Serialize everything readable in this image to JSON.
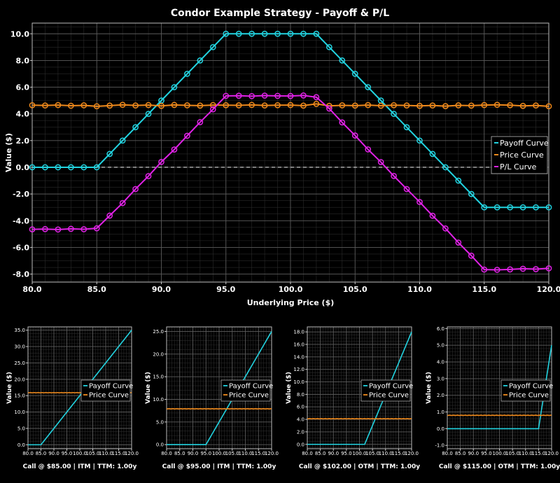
{
  "colors": {
    "payoff": "#22d3e0",
    "price": "#f08a1c",
    "pl": "#e022e6",
    "background": "#000000",
    "grid": "#3a3a3a"
  },
  "chart_data": [
    {
      "type": "line",
      "title": "Condor Example Strategy - Payoff & P/L",
      "xlabel": "Underlying Price ($)",
      "ylabel": "Value ($)",
      "xlim": [
        80,
        120
      ],
      "ylim": [
        -8.6,
        10.8
      ],
      "xticks": [
        80,
        85,
        90,
        95,
        100,
        105,
        110,
        115,
        120
      ],
      "xtick_labels": [
        "80.0",
        "85.0",
        "90.0",
        "95.0",
        "100.0",
        "105.0",
        "110.0",
        "115.0",
        "120.0"
      ],
      "yticks": [
        -8,
        -6,
        -4,
        -2,
        0,
        2,
        4,
        6,
        8,
        10
      ],
      "ytick_labels": [
        "-8.0",
        "-6.0",
        "-4.0",
        "-2.0",
        "0.0",
        "2.0",
        "4.0",
        "6.0",
        "8.0",
        "10.0"
      ],
      "grid": true,
      "zero_line": true,
      "legend": "right",
      "x": [
        80,
        81,
        82,
        83,
        84,
        85,
        86,
        87,
        88,
        89,
        90,
        91,
        92,
        93,
        94,
        95,
        96,
        97,
        98,
        99,
        100,
        101,
        102,
        103,
        104,
        105,
        106,
        107,
        108,
        109,
        110,
        111,
        112,
        113,
        114,
        115,
        116,
        117,
        118,
        119,
        120
      ],
      "series": [
        {
          "name": "Payoff Curve",
          "values": [
            0,
            0,
            0,
            0,
            0,
            0,
            1,
            2,
            3,
            4,
            5,
            6,
            7,
            8,
            9,
            10,
            10,
            10,
            10,
            10,
            10,
            10,
            10,
            9,
            8,
            7,
            6,
            5,
            4,
            3,
            2,
            1,
            0,
            -1,
            -2,
            -3,
            -3,
            -3,
            -3,
            -3,
            -3
          ]
        },
        {
          "name": "Price Curve",
          "values": [
            4.65,
            4.63,
            4.66,
            4.61,
            4.64,
            4.57,
            4.62,
            4.68,
            4.63,
            4.66,
            4.6,
            4.67,
            4.64,
            4.62,
            4.66,
            4.65,
            4.64,
            4.67,
            4.63,
            4.65,
            4.66,
            4.62,
            4.75,
            4.6,
            4.64,
            4.62,
            4.66,
            4.61,
            4.65,
            4.63,
            4.6,
            4.63,
            4.58,
            4.64,
            4.62,
            4.66,
            4.68,
            4.65,
            4.6,
            4.63,
            4.57
          ]
        },
        {
          "name": "P/L Curve",
          "values": [
            -4.65,
            -4.63,
            -4.66,
            -4.61,
            -4.64,
            -4.57,
            -3.62,
            -2.68,
            -1.63,
            -0.66,
            0.4,
            1.33,
            2.36,
            3.38,
            4.34,
            5.35,
            5.36,
            5.33,
            5.37,
            5.35,
            5.34,
            5.38,
            5.25,
            4.4,
            3.36,
            2.38,
            1.34,
            0.39,
            -0.65,
            -1.63,
            -2.6,
            -3.63,
            -4.58,
            -5.64,
            -6.62,
            -7.66,
            -7.68,
            -7.65,
            -7.6,
            -7.63,
            -7.57
          ]
        }
      ]
    },
    {
      "type": "line",
      "xlabel": "Call @ $85.00 | ITM | TTM: 1.00y",
      "ylabel": "Value ($)",
      "xlim": [
        80,
        120
      ],
      "ylim": [
        -1.2,
        36
      ],
      "yticks": [
        0,
        5,
        10,
        15,
        20,
        25,
        30,
        35
      ],
      "ytick_labels": [
        "0.0",
        "5.0",
        "10.0",
        "15.0",
        "20.0",
        "25.0",
        "30.0",
        "35.0"
      ],
      "xticks": [
        80,
        85,
        90,
        95,
        100,
        105,
        110,
        115,
        120
      ],
      "xtick_labels": [
        "80.0",
        "85.0",
        "90.0",
        "95.0",
        "100.0",
        "105.0",
        "110.0",
        "115.0",
        "120.0"
      ],
      "grid": true,
      "legend": "right",
      "strike": 85,
      "price_level": 15.9,
      "series": [
        {
          "name": "Payoff Curve"
        },
        {
          "name": "Price Curve"
        }
      ]
    },
    {
      "type": "line",
      "xlabel": "Call @ $95.00 | ITM | TTM: 1.00y",
      "ylabel": "Value ($)",
      "xlim": [
        80,
        120
      ],
      "ylim": [
        -0.9,
        26
      ],
      "yticks": [
        0,
        5,
        10,
        15,
        20,
        25
      ],
      "ytick_labels": [
        "0.0",
        "5.0",
        "10.0",
        "15.0",
        "20.0",
        "25.0"
      ],
      "xticks": [
        80,
        85,
        90,
        95,
        100,
        105,
        110,
        115,
        120
      ],
      "xtick_labels": [
        "80.0",
        "85.0",
        "90.0",
        "95.0",
        "100.0",
        "105.0",
        "110.0",
        "115.0",
        "120.0"
      ],
      "grid": true,
      "legend": "right",
      "strike": 95,
      "price_level": 7.9,
      "series": [
        {
          "name": "Payoff Curve"
        },
        {
          "name": "Price Curve"
        }
      ]
    },
    {
      "type": "line",
      "xlabel": "Call @ $102.00 | OTM | TTM: 1.00y",
      "ylabel": "Value ($)",
      "xlim": [
        80,
        120
      ],
      "ylim": [
        -0.7,
        18.8
      ],
      "yticks": [
        0,
        2,
        4,
        6,
        8,
        10,
        12,
        14,
        16,
        18
      ],
      "ytick_labels": [
        "0.0",
        "2.0",
        "4.0",
        "6.0",
        "8.0",
        "10.0",
        "12.0",
        "14.0",
        "16.0",
        "18.0"
      ],
      "xticks": [
        80,
        85,
        90,
        95,
        100,
        105,
        110,
        115,
        120
      ],
      "xtick_labels": [
        "80.0",
        "85.0",
        "90.0",
        "95.0",
        "100.0",
        "105.0",
        "110.0",
        "115.0",
        "120.0"
      ],
      "grid": true,
      "legend": "right",
      "strike": 102,
      "price_level": 4.1,
      "series": [
        {
          "name": "Payoff Curve"
        },
        {
          "name": "Price Curve"
        }
      ]
    },
    {
      "type": "line",
      "xlabel": "Call @ $115.00 | OTM | TTM: 1.00y",
      "ylabel": "Value ($)",
      "xlim": [
        80,
        120
      ],
      "ylim": [
        -1.2,
        6.1
      ],
      "yticks": [
        -1,
        0,
        1,
        2,
        3,
        4,
        5,
        6
      ],
      "ytick_labels": [
        "-1.0",
        "0.0",
        "1.0",
        "2.0",
        "3.0",
        "4.0",
        "5.0",
        "6.0"
      ],
      "xticks": [
        80,
        85,
        90,
        95,
        100,
        105,
        110,
        115,
        120
      ],
      "xtick_labels": [
        "80.0",
        "85.0",
        "90.0",
        "95.0",
        "100.0",
        "105.0",
        "110.0",
        "115.0",
        "120.0"
      ],
      "grid": true,
      "legend": "right",
      "strike": 115,
      "price_level": 0.8,
      "series": [
        {
          "name": "Payoff Curve"
        },
        {
          "name": "Price Curve"
        }
      ]
    }
  ]
}
